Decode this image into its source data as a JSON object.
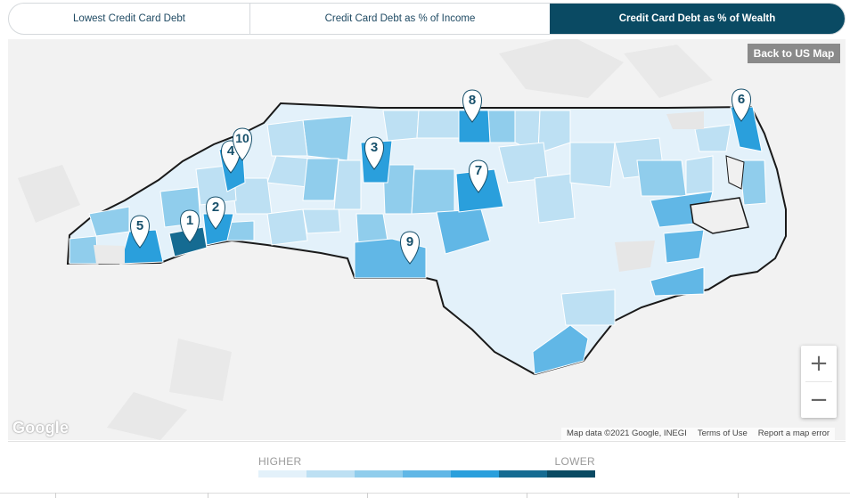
{
  "tabs": [
    {
      "label": "Lowest Credit Card Debt",
      "active": false
    },
    {
      "label": "Credit Card Debt as % of Income",
      "active": false
    },
    {
      "label": "Credit Card Debt as % of Wealth",
      "active": true
    }
  ],
  "back_button": "Back to US Map",
  "zoom": {
    "in": "+",
    "out": "−"
  },
  "google_logo": "Google",
  "attribution": {
    "map_data": "Map data ©2021 Google, INEGI",
    "terms": "Terms of Use",
    "report": "Report a map error"
  },
  "legend": {
    "high_label": "HIGHER",
    "low_label": "LOWER",
    "colors": [
      "#e3f1fa",
      "#bde0f3",
      "#90cdec",
      "#61b7e6",
      "#2a9fdc",
      "#156b92",
      "#0a4a63"
    ]
  },
  "pins": [
    "1",
    "2",
    "3",
    "4",
    "5",
    "6",
    "7",
    "8",
    "9",
    "10"
  ],
  "colors": {
    "pin_fill": "#ffffff",
    "pin_text": "#17506b",
    "state_outline": "#1a1a1a",
    "map_background": "#f2f2f2"
  }
}
